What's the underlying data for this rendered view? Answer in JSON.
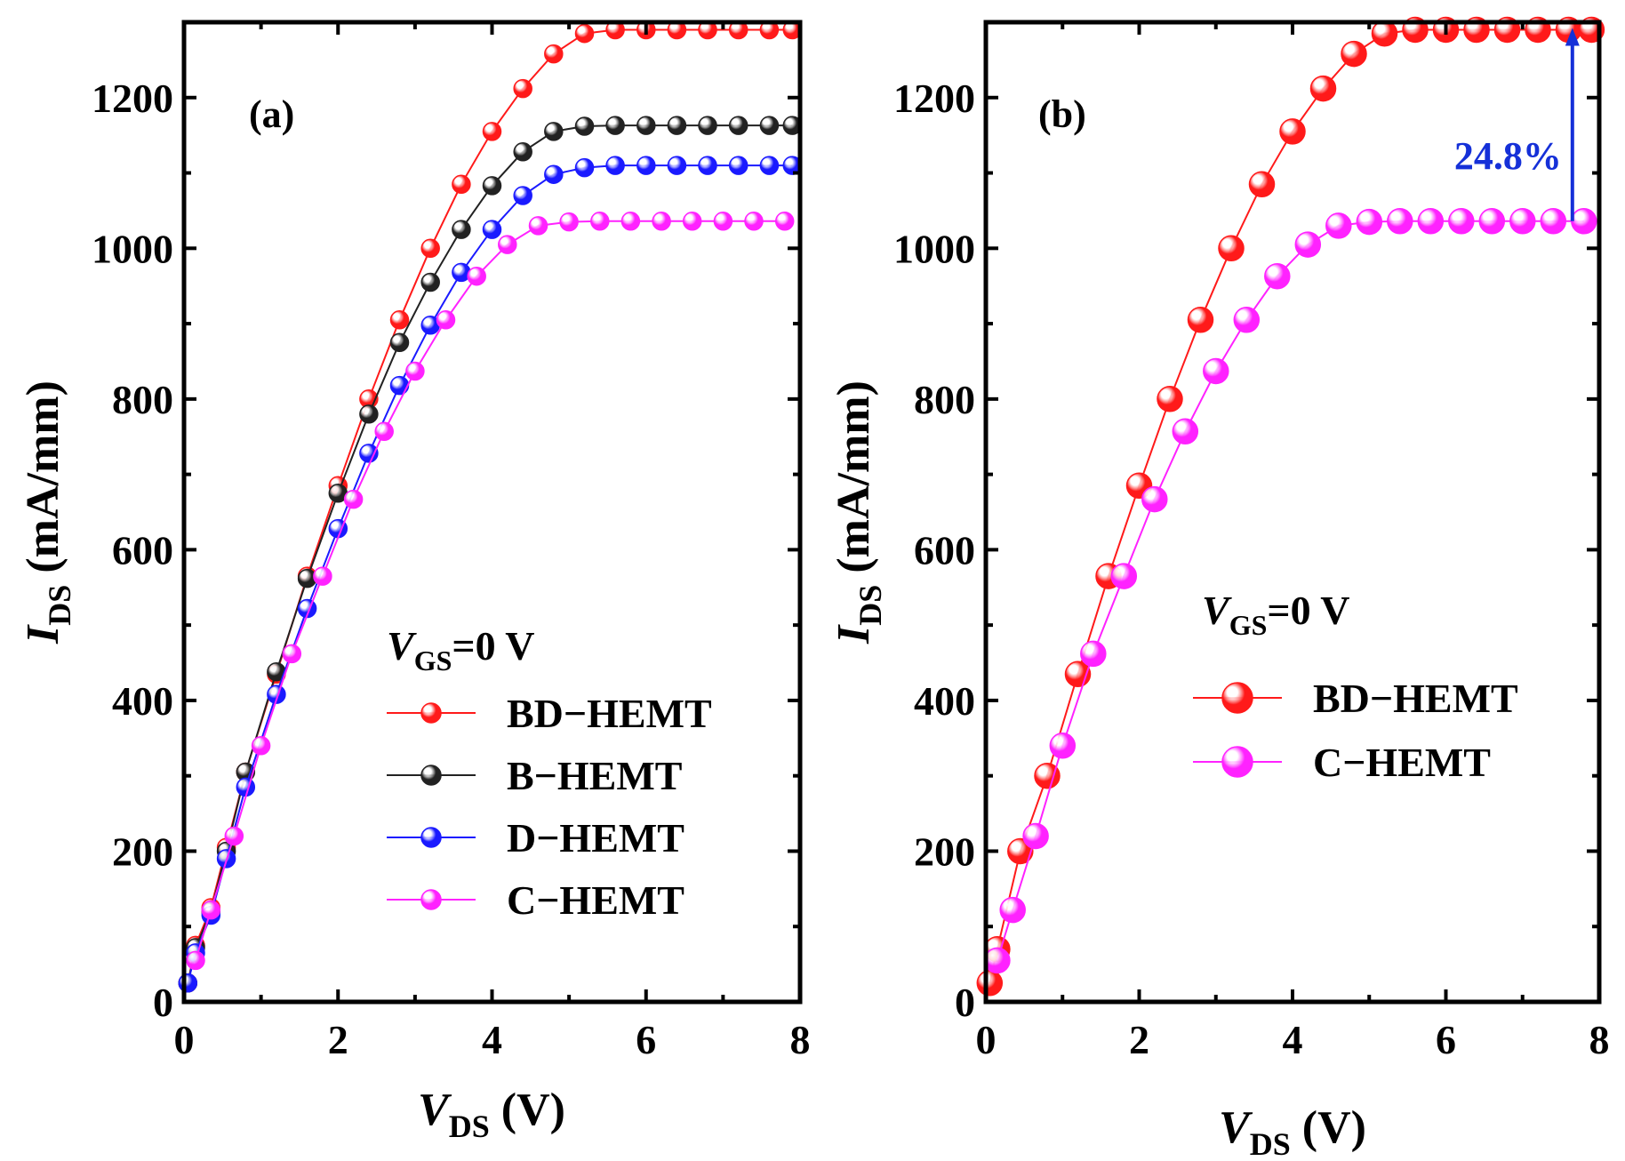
{
  "colors": {
    "red": "#ff1a1a",
    "black": "#222222",
    "blue": "#1a1aff",
    "magenta": "#ff22ff",
    "arrow": "#1530d8"
  },
  "chart_data": [
    {
      "panel_label": "(a)",
      "type": "line",
      "xlabel": {
        "main": "V",
        "sub": "DS",
        "unit": " (V)"
      },
      "ylabel": {
        "main": "I",
        "sub": "DS",
        "unit": " (mA/mm)"
      },
      "xlim": [
        0,
        8
      ],
      "ylim": [
        0,
        1300
      ],
      "xticks": [
        0,
        2,
        4,
        6,
        8
      ],
      "yticks": [
        0,
        200,
        400,
        600,
        800,
        1000,
        1200
      ],
      "legend_title": {
        "main": "V",
        "sub": "GS",
        "rest": "=0 V"
      },
      "series": [
        {
          "name": "BD−HEMT",
          "color_key": "red",
          "x": [
            0.05,
            0.15,
            0.35,
            0.55,
            0.8,
            1.2,
            1.6,
            2.0,
            2.4,
            2.8,
            3.2,
            3.6,
            4.0,
            4.4,
            4.8,
            5.2,
            5.6,
            6.0,
            6.4,
            6.8,
            7.2,
            7.6,
            7.9
          ],
          "y": [
            25,
            75,
            125,
            205,
            305,
            435,
            565,
            685,
            800,
            905,
            1000,
            1085,
            1155,
            1212,
            1258,
            1285,
            1290,
            1290,
            1290,
            1290,
            1290,
            1290,
            1290
          ]
        },
        {
          "name": "B−HEMT",
          "color_key": "black",
          "x": [
            0.05,
            0.15,
            0.35,
            0.55,
            0.8,
            1.2,
            1.6,
            2.0,
            2.4,
            2.8,
            3.2,
            3.6,
            4.0,
            4.4,
            4.8,
            5.2,
            5.6,
            6.0,
            6.4,
            6.8,
            7.2,
            7.6,
            7.9
          ],
          "y": [
            25,
            72,
            120,
            200,
            305,
            438,
            562,
            675,
            780,
            875,
            955,
            1025,
            1083,
            1128,
            1155,
            1162,
            1163,
            1163,
            1163,
            1163,
            1163,
            1163,
            1163
          ]
        },
        {
          "name": "D−HEMT",
          "color_key": "blue",
          "x": [
            0.05,
            0.15,
            0.35,
            0.55,
            0.8,
            1.2,
            1.6,
            2.0,
            2.4,
            2.8,
            3.2,
            3.6,
            4.0,
            4.4,
            4.8,
            5.2,
            5.6,
            6.0,
            6.4,
            6.8,
            7.2,
            7.6,
            7.9
          ],
          "y": [
            25,
            65,
            115,
            190,
            285,
            408,
            522,
            628,
            728,
            818,
            898,
            968,
            1025,
            1070,
            1098,
            1107,
            1110,
            1110,
            1110,
            1110,
            1110,
            1110,
            1110
          ]
        },
        {
          "name": "C−HEMT",
          "color_key": "magenta",
          "x": [
            0.15,
            0.35,
            0.65,
            1.0,
            1.4,
            1.8,
            2.2,
            2.6,
            3.0,
            3.4,
            3.8,
            4.2,
            4.6,
            5.0,
            5.4,
            5.8,
            6.2,
            6.6,
            7.0,
            7.4,
            7.8
          ],
          "y": [
            55,
            122,
            220,
            340,
            462,
            565,
            667,
            757,
            837,
            905,
            963,
            1005,
            1030,
            1035,
            1036,
            1036,
            1036,
            1036,
            1036,
            1036,
            1036
          ]
        }
      ]
    },
    {
      "panel_label": "(b)",
      "type": "line",
      "xlabel": {
        "main": "V",
        "sub": "DS",
        "unit": " (V)"
      },
      "ylabel": {
        "main": "I",
        "sub": "DS",
        "unit": " (mA/mm)"
      },
      "xlim": [
        0,
        8
      ],
      "ylim": [
        0,
        1300
      ],
      "xticks": [
        0,
        2,
        4,
        6,
        8
      ],
      "yticks": [
        0,
        200,
        400,
        600,
        800,
        1000,
        1200
      ],
      "legend_title": {
        "main": "V",
        "sub": "GS",
        "rest": "=0 V"
      },
      "annotation": {
        "text": "24.8%",
        "x": 7.65,
        "y_from": 1036,
        "y_to": 1290
      },
      "series": [
        {
          "name": "BD−HEMT",
          "color_key": "red",
          "x": [
            0.05,
            0.15,
            0.45,
            0.8,
            1.2,
            1.6,
            2.0,
            2.4,
            2.8,
            3.2,
            3.6,
            4.0,
            4.4,
            4.8,
            5.2,
            5.6,
            6.0,
            6.4,
            6.8,
            7.2,
            7.6,
            7.9
          ],
          "y": [
            25,
            70,
            200,
            300,
            435,
            565,
            685,
            800,
            905,
            1000,
            1085,
            1155,
            1212,
            1258,
            1285,
            1290,
            1290,
            1290,
            1290,
            1290,
            1290,
            1290
          ]
        },
        {
          "name": "C−HEMT",
          "color_key": "magenta",
          "x": [
            0.15,
            0.35,
            0.65,
            1.0,
            1.4,
            1.8,
            2.2,
            2.6,
            3.0,
            3.4,
            3.8,
            4.2,
            4.6,
            5.0,
            5.4,
            5.8,
            6.2,
            6.6,
            7.0,
            7.4,
            7.8
          ],
          "y": [
            55,
            122,
            220,
            340,
            462,
            565,
            667,
            757,
            837,
            905,
            963,
            1005,
            1030,
            1035,
            1036,
            1036,
            1036,
            1036,
            1036,
            1036,
            1036
          ]
        }
      ]
    }
  ]
}
